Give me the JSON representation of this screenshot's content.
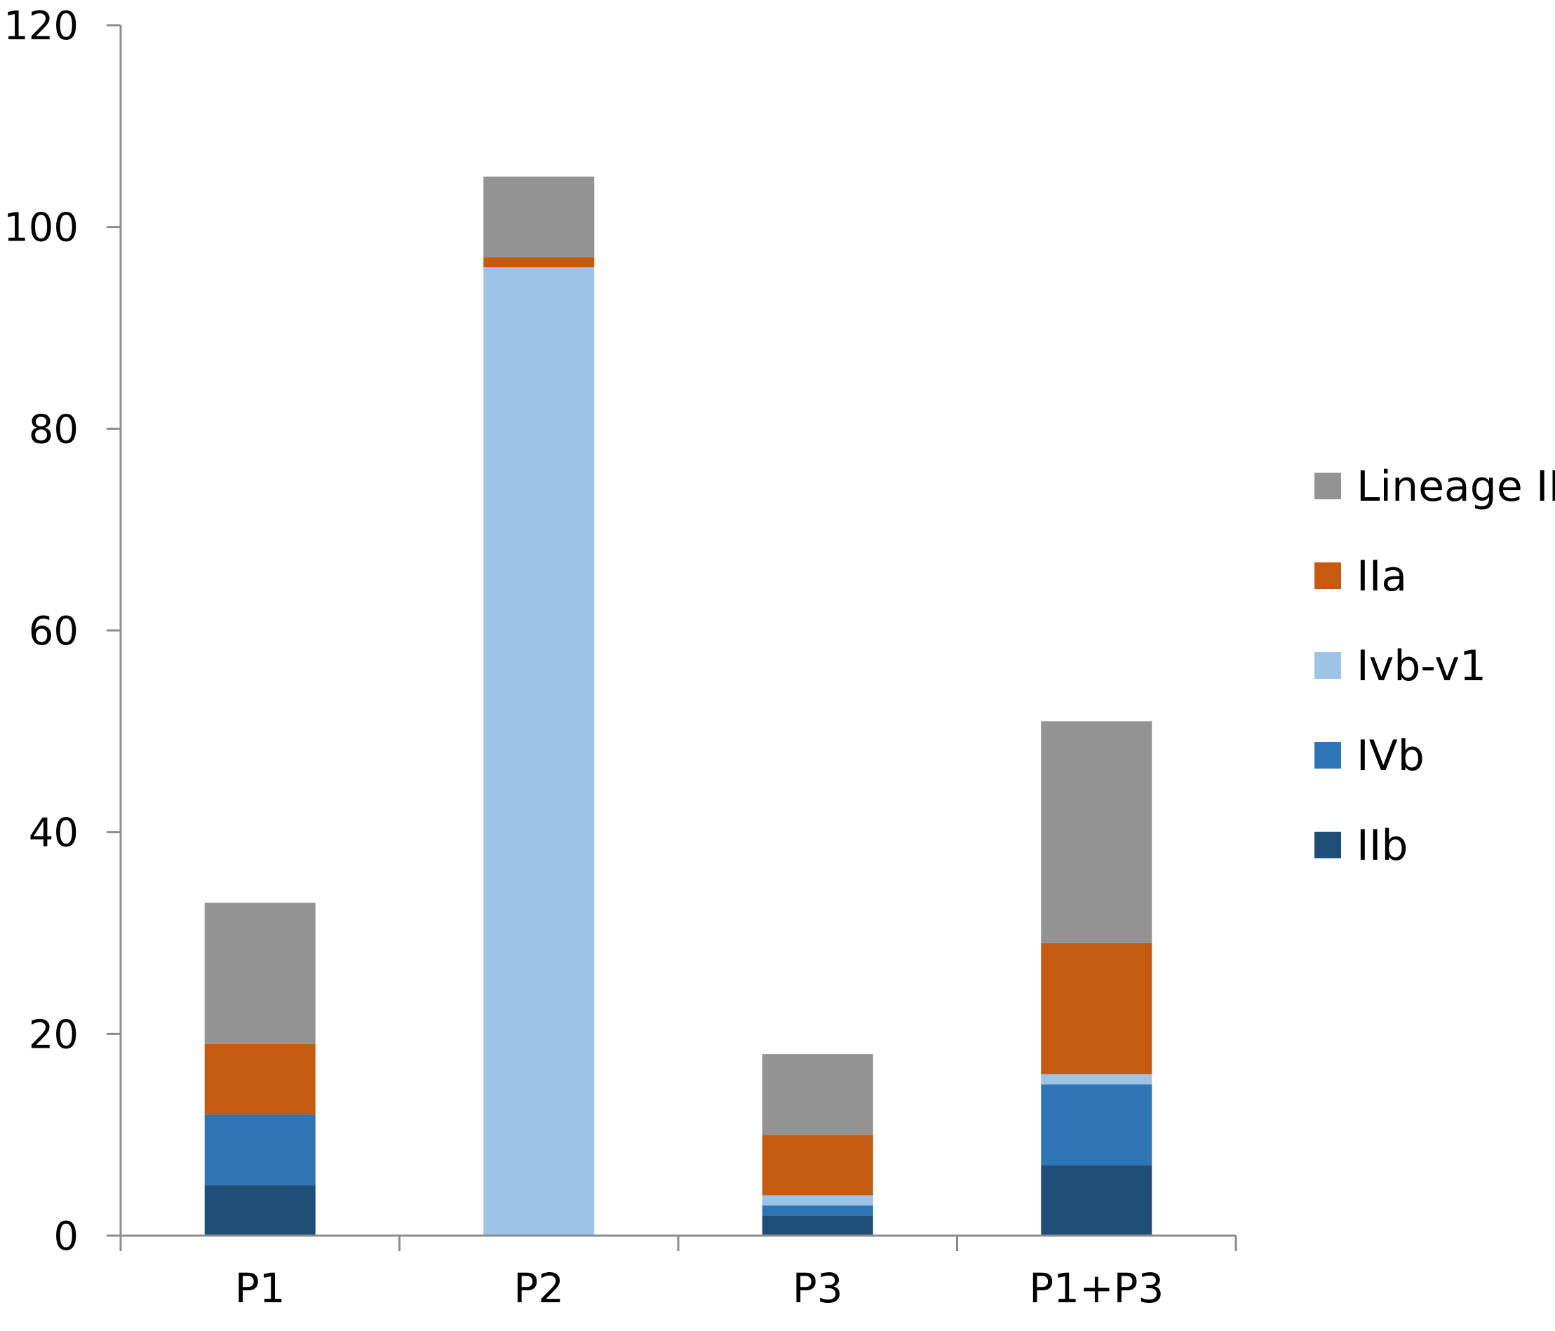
{
  "chart_data": {
    "type": "bar",
    "stacked": true,
    "title": "",
    "xlabel": "",
    "ylabel": "",
    "ylim": [
      0,
      120
    ],
    "yticks": [
      0,
      20,
      40,
      60,
      80,
      100,
      120
    ],
    "ytick_labels": [
      "0",
      "20",
      "40",
      "60",
      "80",
      "100",
      "120"
    ],
    "grid": false,
    "legend_position": "right",
    "categories": [
      "P1",
      "P2",
      "P3",
      "P1+P3"
    ],
    "series": [
      {
        "name": "IIb",
        "color": "#1f4e79",
        "values": [
          5,
          0,
          2,
          7
        ]
      },
      {
        "name": "IVb",
        "color": "#2e75b6",
        "values": [
          7,
          0,
          1,
          8
        ]
      },
      {
        "name": "Ivb-v1",
        "color": "#9dc3e6",
        "values": [
          0,
          96,
          1,
          1
        ]
      },
      {
        "name": "IIa",
        "color": "#c55a11",
        "values": [
          7,
          1,
          6,
          13
        ]
      },
      {
        "name": "Lineage III",
        "color": "#939393",
        "values": [
          14,
          8,
          8,
          22
        ]
      }
    ],
    "legend_order": [
      "Lineage III",
      "IIa",
      "Ivb-v1",
      "IVb",
      "IIb"
    ]
  }
}
